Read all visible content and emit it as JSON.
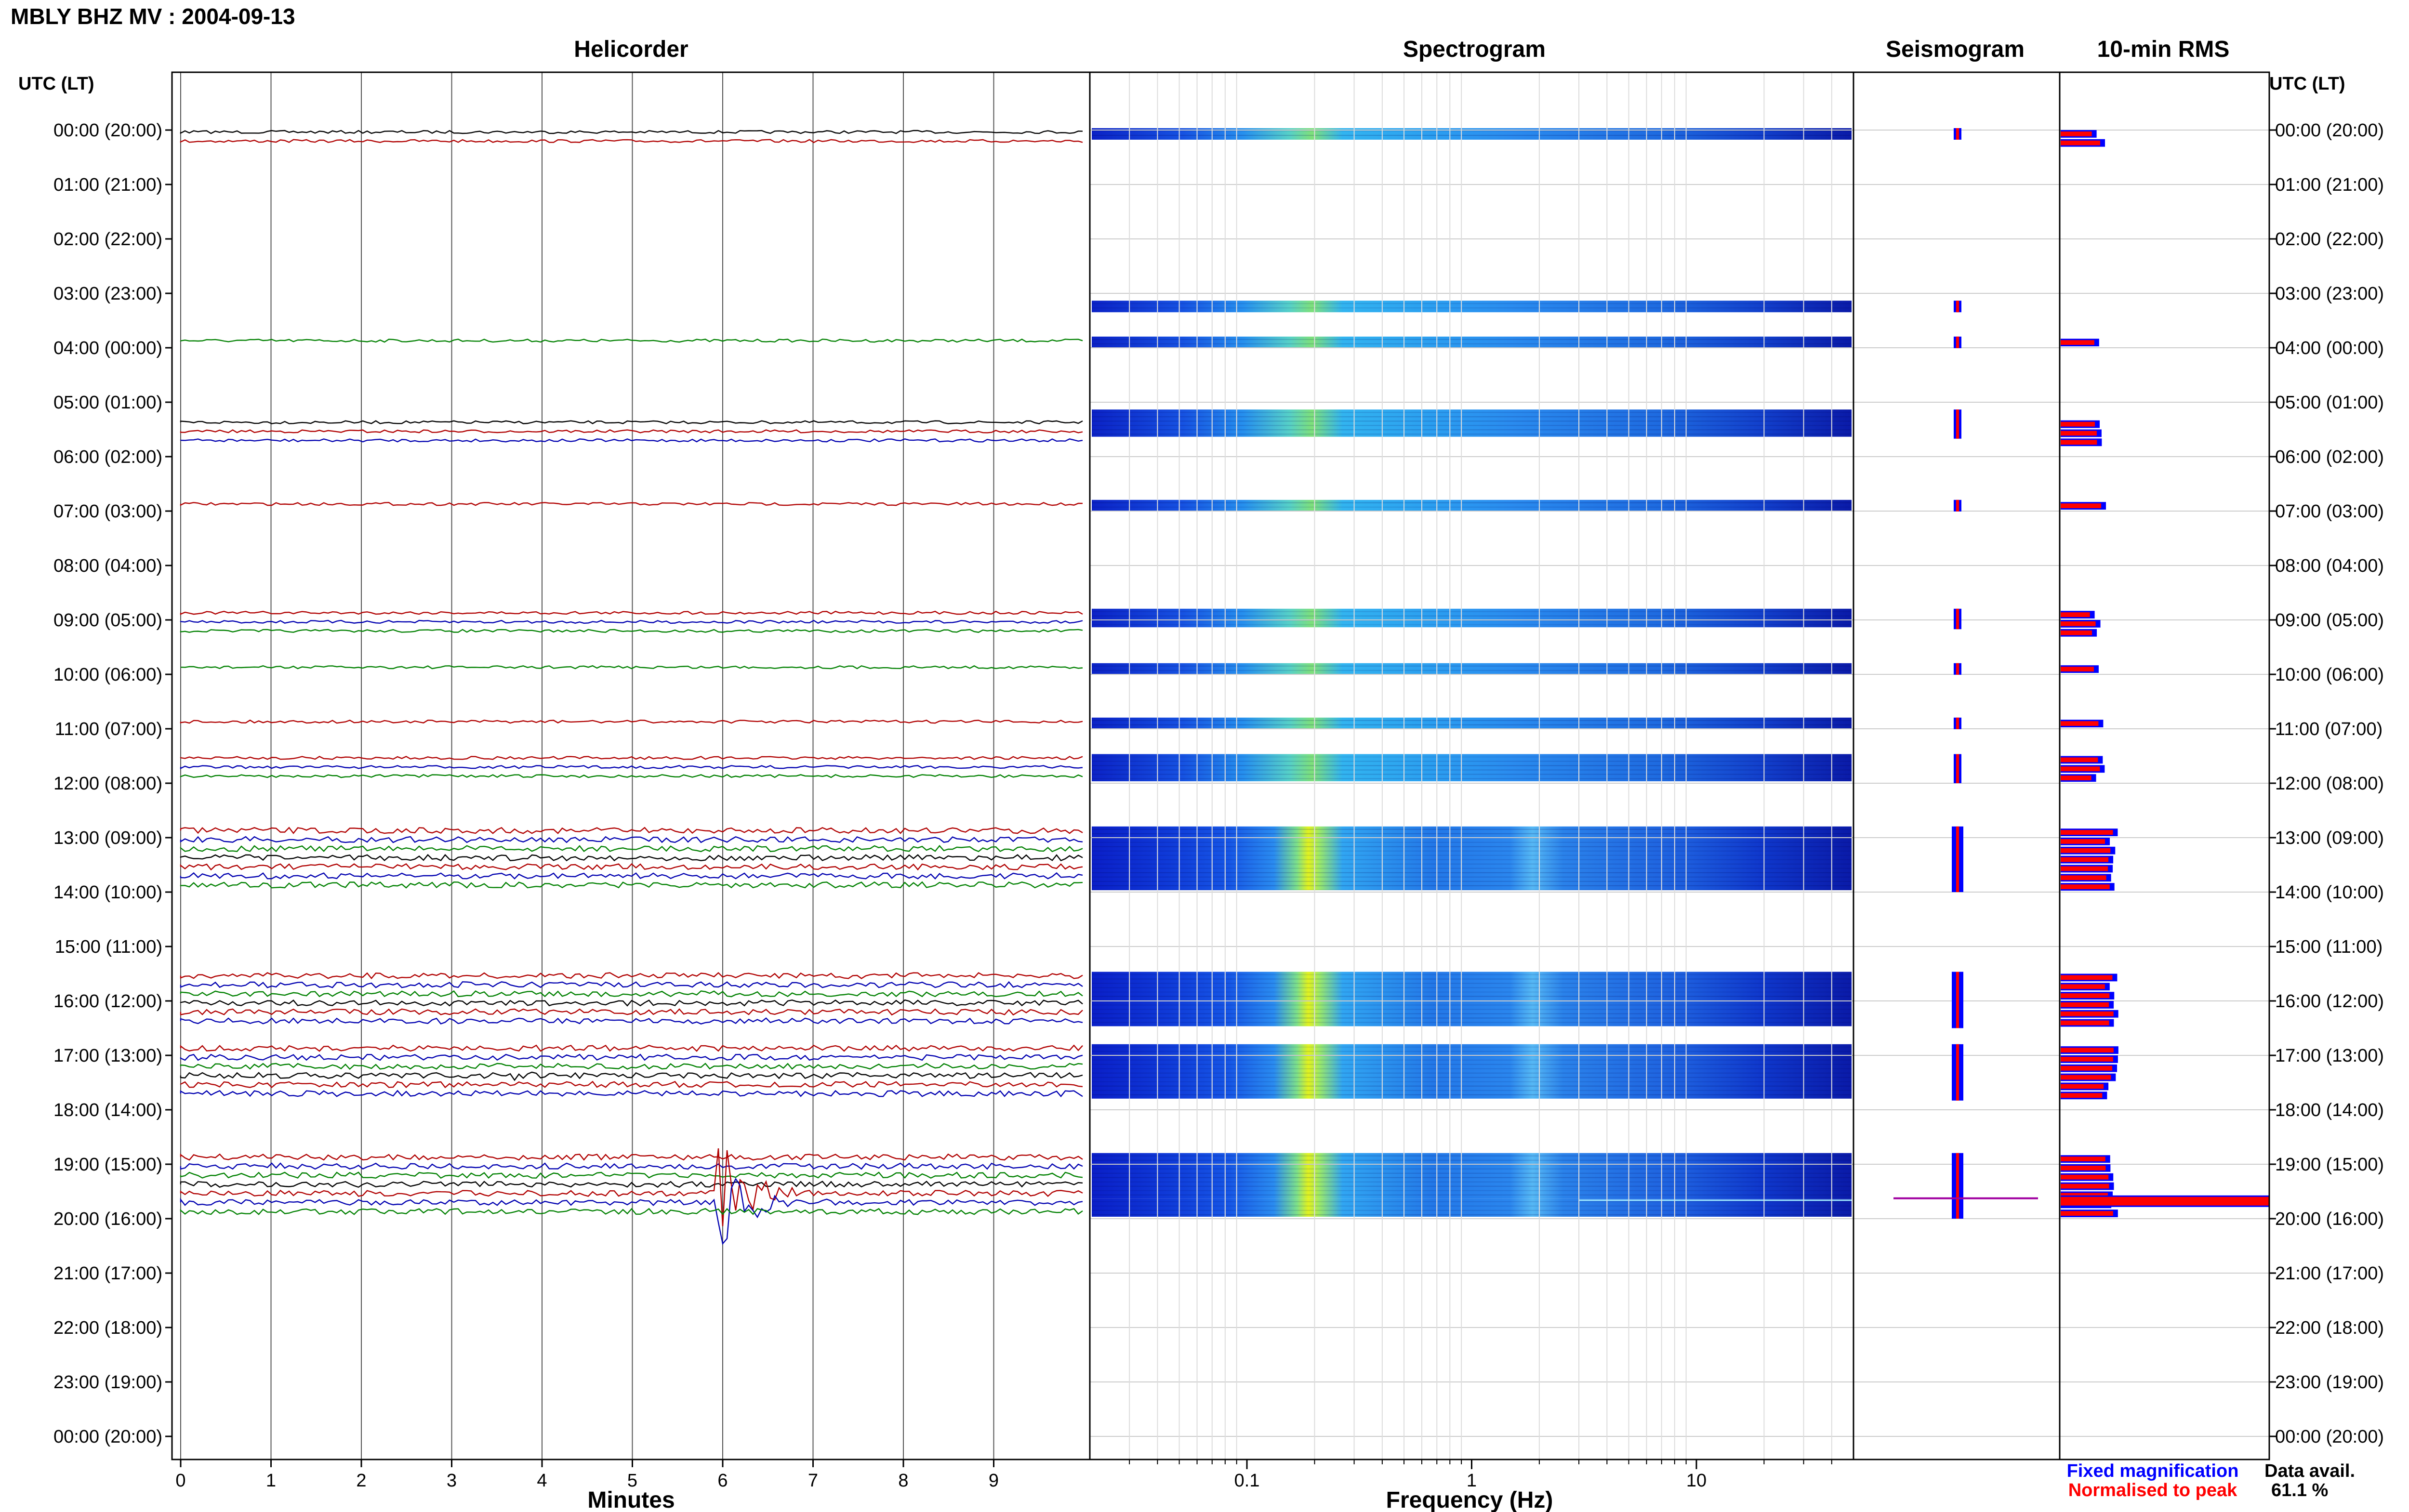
{
  "chart_data": {
    "type": "helicorder",
    "title": "MBLY BHZ MV : 2004-09-13",
    "hour_axis_title_left": "UTC (LT)",
    "hour_axis_title_right": "UTC (LT)",
    "hour_labels": [
      "00:00 (20:00)",
      "01:00 (21:00)",
      "02:00 (22:00)",
      "03:00 (23:00)",
      "04:00 (00:00)",
      "05:00 (01:00)",
      "06:00 (02:00)",
      "07:00 (03:00)",
      "08:00 (04:00)",
      "09:00 (05:00)",
      "10:00 (06:00)",
      "11:00 (07:00)",
      "12:00 (08:00)",
      "13:00 (09:00)",
      "14:00 (10:00)",
      "15:00 (11:00)",
      "16:00 (12:00)",
      "17:00 (13:00)",
      "18:00 (14:00)",
      "19:00 (15:00)",
      "20:00 (16:00)",
      "21:00 (17:00)",
      "22:00 (18:00)",
      "23:00 (19:00)",
      "00:00 (20:00)"
    ],
    "panels": {
      "helicorder": {
        "title": "Helicorder",
        "xlabel": "Minutes",
        "x_ticks": [
          "0",
          "1",
          "2",
          "3",
          "4",
          "5",
          "6",
          "7",
          "8",
          "9"
        ],
        "xlim": [
          0,
          10
        ],
        "events": [
          {
            "minute": 6.0,
            "hour": 19.6,
            "amplitude": "large"
          },
          {
            "minute": 3.7,
            "hour": 17.4,
            "amplitude": "small"
          },
          {
            "minute": 5.0,
            "hour": 17.4,
            "amplitude": "small"
          }
        ]
      },
      "spectrogram": {
        "title": "Spectrogram",
        "xlabel": "Frequency (Hz)",
        "x_scale": "log",
        "x_ticks": [
          "0.1",
          "1",
          "10"
        ],
        "xlim": [
          0.02,
          50
        ],
        "colormap": "jet"
      },
      "seismogram": {
        "title": "Seismogram"
      },
      "rms": {
        "title": "10-min RMS",
        "spike_hour": 19.75
      }
    },
    "data_hours": [
      [
        0.0,
        0.17
      ],
      [
        3.17,
        3.33
      ],
      [
        3.83,
        4.0
      ],
      [
        5.17,
        5.67
      ],
      [
        6.83,
        7.0
      ],
      [
        8.83,
        9.17
      ],
      [
        9.83,
        10.0
      ],
      [
        10.83,
        11.0
      ],
      [
        11.5,
        12.0
      ],
      [
        12.83,
        14.0
      ],
      [
        15.5,
        16.5
      ],
      [
        16.83,
        17.83
      ],
      [
        18.83,
        19.67
      ],
      [
        19.67,
        20.0
      ]
    ],
    "legend": {
      "fixed": "Fixed magnification",
      "fixed_color": "#0000ff",
      "normalised": "Normalised to peak",
      "normalised_color": "#ff0000"
    },
    "data_avail_label": "Data avail.",
    "data_avail_value": "61.1 %"
  }
}
